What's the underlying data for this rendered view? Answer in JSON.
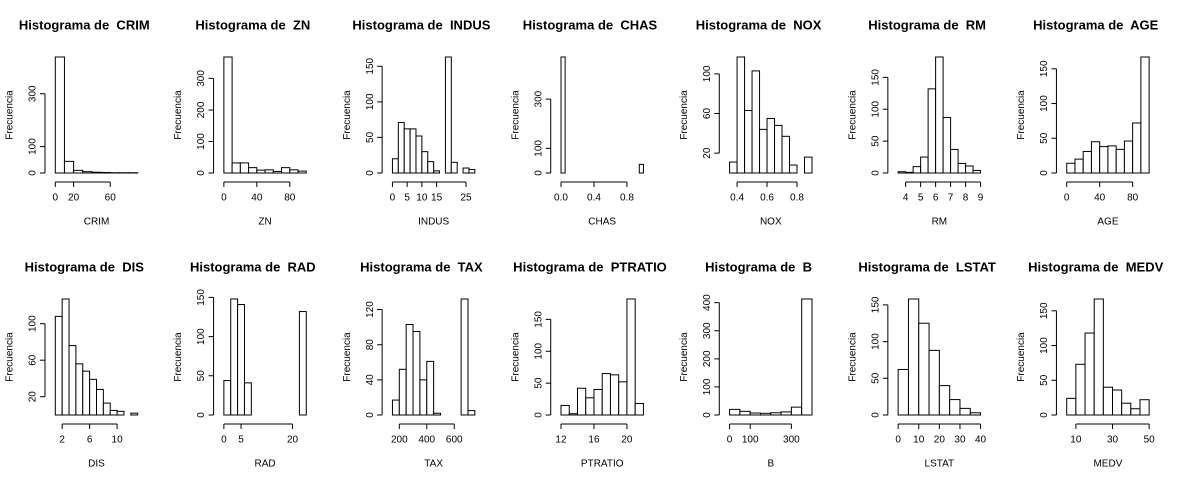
{
  "chart_data": [
    {
      "type": "histogram",
      "title": "Histograma de  CRIM",
      "xlabel": "CRIM",
      "ylabel": "Frecuencia",
      "color": "#ffffff",
      "bins": [
        0,
        10,
        20,
        30,
        40,
        50,
        60,
        70,
        80,
        90
      ],
      "counts": [
        439,
        44,
        10,
        5,
        3,
        2,
        1,
        1,
        1
      ],
      "xlim": [
        0,
        90
      ],
      "ylim": [
        0,
        439
      ],
      "xticks": [
        0,
        20,
        60
      ],
      "yticks": [
        0,
        100,
        300
      ]
    },
    {
      "type": "histogram",
      "title": "Histograma de  ZN",
      "xlabel": "ZN",
      "ylabel": "Frecuencia",
      "color": "#ffffff",
      "bins": [
        0,
        10,
        20,
        30,
        40,
        50,
        60,
        70,
        80,
        90,
        100
      ],
      "counts": [
        368,
        32,
        32,
        17,
        9,
        10,
        5,
        17,
        10,
        6
      ],
      "xlim": [
        0,
        100
      ],
      "ylim": [
        0,
        368
      ],
      "xticks": [
        0,
        40,
        80
      ],
      "yticks": [
        0,
        100,
        200,
        300
      ]
    },
    {
      "type": "histogram",
      "title": "Histograma de  INDUS",
      "xlabel": "INDUS",
      "ylabel": "Frecuencia",
      "color": "#ffffff",
      "bins": [
        0,
        2,
        4,
        6,
        8,
        10,
        12,
        14,
        16,
        18,
        20,
        22,
        24,
        26,
        28
      ],
      "counts": [
        20,
        71,
        62,
        62,
        52,
        30,
        16,
        3,
        0,
        163,
        15,
        0,
        7,
        5
      ],
      "xlim": [
        0,
        28
      ],
      "ylim": [
        0,
        163
      ],
      "xticks": [
        0,
        5,
        10,
        15,
        25
      ],
      "yticks": [
        0,
        50,
        100,
        150
      ]
    },
    {
      "type": "histogram",
      "title": "Histograma de  CHAS",
      "xlabel": "CHAS",
      "ylabel": "Frecuencia",
      "color": "#ffffff",
      "bins": [
        0,
        0.05,
        0.1,
        0.15,
        0.2,
        0.25,
        0.3,
        0.35,
        0.4,
        0.45,
        0.5,
        0.55,
        0.6,
        0.65,
        0.7,
        0.75,
        0.8,
        0.85,
        0.9,
        0.95,
        1
      ],
      "counts": [
        471,
        0,
        0,
        0,
        0,
        0,
        0,
        0,
        0,
        0,
        0,
        0,
        0,
        0,
        0,
        0,
        0,
        0,
        0,
        35
      ],
      "xlim": [
        0,
        1
      ],
      "ylim": [
        0,
        471
      ],
      "xticks": [
        {
          "value": 0,
          "label": "0.0"
        },
        0.4,
        0.8
      ],
      "yticks": [
        0,
        100,
        300
      ]
    },
    {
      "type": "histogram",
      "title": "Histograma de  NOX",
      "xlabel": "NOX",
      "ylabel": "Frecuencia",
      "color": "#ffffff",
      "bins": [
        0.35,
        0.4,
        0.45,
        0.5,
        0.55,
        0.6,
        0.65,
        0.7,
        0.75,
        0.8,
        0.85,
        0.9
      ],
      "counts": [
        11,
        117,
        63,
        103,
        44,
        55,
        48,
        37,
        8,
        0,
        16
      ],
      "xlim": [
        0.35,
        0.9
      ],
      "ylim": [
        0,
        117
      ],
      "xticks": [
        0.4,
        0.6,
        0.8
      ],
      "yticks": [
        20,
        60,
        100
      ]
    },
    {
      "type": "histogram",
      "title": "Histograma de  RM",
      "xlabel": "RM",
      "ylabel": "Frecuencia",
      "color": "#ffffff",
      "bins": [
        3.5,
        4,
        4.5,
        5,
        5.5,
        6,
        6.5,
        7,
        7.5,
        8,
        8.5,
        9
      ],
      "counts": [
        2,
        1,
        10,
        25,
        132,
        182,
        87,
        37,
        15,
        11,
        4
      ],
      "xlim": [
        3.5,
        9
      ],
      "ylim": [
        0,
        182
      ],
      "xticks": [
        4,
        5,
        6,
        7,
        8,
        9
      ],
      "yticks": [
        0,
        50,
        100,
        150
      ]
    },
    {
      "type": "histogram",
      "title": "Histograma de  AGE",
      "xlabel": "AGE",
      "ylabel": "Frecuencia",
      "color": "#ffffff",
      "bins": [
        0,
        10,
        20,
        30,
        40,
        50,
        60,
        70,
        80,
        90,
        100
      ],
      "counts": [
        14,
        20,
        31,
        45,
        38,
        39,
        34,
        46,
        72,
        167
      ],
      "xlim": [
        0,
        100
      ],
      "ylim": [
        0,
        167
      ],
      "xticks": [
        0,
        40,
        80
      ],
      "yticks": [
        0,
        50,
        100,
        150
      ]
    },
    {
      "type": "histogram",
      "title": "Histograma de  DIS",
      "xlabel": "DIS",
      "ylabel": "Frecuencia",
      "color": "#ffffff",
      "bins": [
        1,
        2,
        3,
        4,
        5,
        6,
        7,
        8,
        9,
        10,
        11,
        12,
        13
      ],
      "counts": [
        108,
        127,
        76,
        56,
        48,
        39,
        28,
        13,
        5,
        4,
        0,
        2
      ],
      "xlim": [
        1,
        13
      ],
      "ylim": [
        0,
        127
      ],
      "xticks": [
        2,
        6,
        10
      ],
      "yticks": [
        20,
        60,
        100
      ]
    },
    {
      "type": "histogram",
      "title": "Histograma de  RAD",
      "xlabel": "RAD",
      "ylabel": "Frecuencia",
      "color": "#ffffff",
      "bins": [
        0,
        2,
        4,
        6,
        8,
        10,
        12,
        14,
        16,
        18,
        20,
        22,
        24
      ],
      "counts": [
        44,
        148,
        141,
        41,
        0,
        0,
        0,
        0,
        0,
        0,
        0,
        132
      ],
      "xlim": [
        0,
        24
      ],
      "ylim": [
        0,
        148
      ],
      "xticks": [
        0,
        5,
        20
      ],
      "yticks": [
        0,
        50,
        100,
        150
      ]
    },
    {
      "type": "histogram",
      "title": "Histograma de  TAX",
      "xlabel": "TAX",
      "ylabel": "Frecuencia",
      "color": "#ffffff",
      "bins": [
        150,
        200,
        250,
        300,
        350,
        400,
        450,
        500,
        550,
        600,
        650,
        700,
        750
      ],
      "counts": [
        17,
        52,
        103,
        95,
        40,
        61,
        2,
        0,
        0,
        0,
        132,
        5
      ],
      "xlim": [
        150,
        750
      ],
      "ylim": [
        0,
        132
      ],
      "xticks": [
        200,
        400,
        600
      ],
      "yticks": [
        0,
        40,
        80,
        120
      ]
    },
    {
      "type": "histogram",
      "title": "Histograma de  PTRATIO",
      "xlabel": "PTRATIO",
      "ylabel": "Frecuencia",
      "color": "#ffffff",
      "bins": [
        12,
        13,
        14,
        15,
        16,
        17,
        18,
        19,
        20,
        21,
        22
      ],
      "counts": [
        15,
        2,
        42,
        27,
        40,
        65,
        63,
        52,
        182,
        18
      ],
      "xlim": [
        12,
        22
      ],
      "ylim": [
        0,
        182
      ],
      "xticks": [
        12,
        16,
        20
      ],
      "yticks": [
        0,
        50,
        100,
        150
      ]
    },
    {
      "type": "histogram",
      "title": "Histograma de  B",
      "xlabel": "B",
      "ylabel": "Frecuencia",
      "color": "#ffffff",
      "bins": [
        0,
        50,
        100,
        150,
        200,
        250,
        300,
        350,
        400
      ],
      "counts": [
        20,
        13,
        7,
        6,
        8,
        11,
        28,
        413
      ],
      "xlim": [
        0,
        400
      ],
      "ylim": [
        0,
        413
      ],
      "xticks": [
        0,
        100,
        300
      ],
      "yticks": [
        0,
        100,
        200,
        300,
        400
      ]
    },
    {
      "type": "histogram",
      "title": "Histograma de  LSTAT",
      "xlabel": "LSTAT",
      "ylabel": "Frecuencia",
      "color": "#ffffff",
      "bins": [
        0,
        5,
        10,
        15,
        20,
        25,
        30,
        35,
        40
      ],
      "counts": [
        62,
        158,
        125,
        88,
        40,
        21,
        9,
        3
      ],
      "xlim": [
        0,
        40
      ],
      "ylim": [
        0,
        158
      ],
      "xticks": [
        0,
        10,
        20,
        30,
        40
      ],
      "yticks": [
        0,
        50,
        100,
        150
      ]
    },
    {
      "type": "histogram",
      "title": "Histograma de  MEDV",
      "xlabel": "MEDV",
      "ylabel": "Frecuencia",
      "color": "#ffffff",
      "bins": [
        5,
        10,
        15,
        20,
        25,
        30,
        35,
        40,
        45,
        50
      ],
      "counts": [
        24,
        73,
        118,
        167,
        40,
        36,
        17,
        9,
        22
      ],
      "xlim": [
        5,
        50
      ],
      "ylim": [
        0,
        167
      ],
      "xticks": [
        10,
        30,
        50
      ],
      "yticks": [
        0,
        50,
        100,
        150
      ]
    }
  ]
}
